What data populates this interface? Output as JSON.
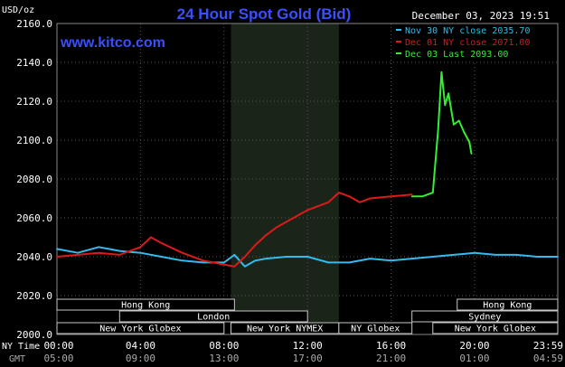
{
  "header": {
    "unit": "USD/oz",
    "title": "24 Hour Spot Gold (Bid)",
    "date": "December 03, 2023 19:51",
    "site": "www.kitco.com"
  },
  "legend": [
    {
      "label": "Nov 30 NY close 2035.70",
      "color": "#33bbee"
    },
    {
      "label": "Dec 01 NY close 2071.00",
      "color": "#dd1a1a"
    },
    {
      "label": "Dec 03 Last 2093.00",
      "color": "#33ee33"
    }
  ],
  "sessions": [
    {
      "label": "Hong Kong",
      "row": 0,
      "start": "00:00",
      "end": "08:30"
    },
    {
      "label": "Hong Kong",
      "row": 0,
      "start": "19:10",
      "end": "23:59"
    },
    {
      "label": "London",
      "row": 1,
      "start": "03:00",
      "end": "12:00"
    },
    {
      "label": "Sydney",
      "row": 1,
      "start": "17:00",
      "end": "23:59"
    },
    {
      "label": "New York Globex",
      "row": 2,
      "start": "00:00",
      "end": "08:00"
    },
    {
      "label": "New York NYMEX",
      "row": 2,
      "start": "08:20",
      "end": "13:30"
    },
    {
      "label": "NY Globex",
      "row": 2,
      "start": "13:30",
      "end": "17:00"
    },
    {
      "label": "New York Globex",
      "row": 2,
      "start": "18:00",
      "end": "23:59"
    }
  ],
  "chart_data": {
    "type": "line",
    "title": "24 Hour Spot Gold (Bid)",
    "ylabel": "USD/oz",
    "ylim": [
      2000,
      2160
    ],
    "xlim_hours": [
      0,
      23.983
    ],
    "grid": true,
    "legend_position": "top-right",
    "highlight_band": {
      "start": "08:20",
      "end": "13:30"
    },
    "y_ticks": [
      "2000.0",
      "2020.0",
      "2040.0",
      "2060.0",
      "2080.0",
      "2100.0",
      "2120.0",
      "2140.0",
      "2160.0"
    ],
    "x_ticks": {
      "ny_label": "NY Time",
      "gmt_label": "GMT",
      "ny": [
        "00:00",
        "04:00",
        "08:00",
        "12:00",
        "16:00",
        "20:00",
        "23:59"
      ],
      "gmt": [
        "05:00",
        "09:00",
        "13:00",
        "17:00",
        "21:00",
        "01:00",
        "04:59"
      ]
    },
    "series": [
      {
        "name": "Nov 30 NY close 2035.70",
        "color": "#33bbee",
        "x": [
          "00:00",
          "01:00",
          "02:00",
          "03:00",
          "04:00",
          "05:00",
          "06:00",
          "07:00",
          "08:00",
          "08:30",
          "09:00",
          "09:30",
          "10:00",
          "11:00",
          "12:00",
          "13:00",
          "14:00",
          "15:00",
          "16:00",
          "17:00",
          "18:00",
          "19:00",
          "20:00",
          "21:00",
          "22:00",
          "23:00",
          "23:59"
        ],
        "y": [
          2044,
          2042,
          2045,
          2043,
          2042,
          2040,
          2038,
          2037,
          2037,
          2041,
          2035,
          2038,
          2039,
          2040,
          2040,
          2037,
          2037,
          2039,
          2038,
          2039,
          2040,
          2041,
          2042,
          2041,
          2041,
          2040,
          2040
        ]
      },
      {
        "name": "Dec 01 NY close 2071.00",
        "color": "#dd1a1a",
        "x": [
          "00:00",
          "01:00",
          "02:00",
          "03:00",
          "04:00",
          "04:30",
          "05:00",
          "06:00",
          "07:00",
          "08:00",
          "08:30",
          "09:00",
          "09:30",
          "10:00",
          "10:30",
          "11:00",
          "12:00",
          "13:00",
          "13:30",
          "14:00",
          "14:30",
          "15:00",
          "16:00",
          "17:00"
        ],
        "y": [
          2040,
          2041,
          2042,
          2041,
          2045,
          2050,
          2047,
          2042,
          2038,
          2036,
          2035,
          2040,
          2046,
          2051,
          2055,
          2058,
          2064,
          2068,
          2073,
          2071,
          2068,
          2070,
          2071,
          2072
        ]
      },
      {
        "name": "Dec 03 Last 2093.00",
        "color": "#33ee33",
        "x": [
          "17:00",
          "17:30",
          "18:00",
          "18:15",
          "18:25",
          "18:35",
          "18:45",
          "19:00",
          "19:15",
          "19:30",
          "19:45",
          "19:51"
        ],
        "y": [
          2071,
          2071,
          2073,
          2105,
          2135,
          2118,
          2124,
          2108,
          2110,
          2104,
          2099,
          2093
        ]
      }
    ]
  }
}
